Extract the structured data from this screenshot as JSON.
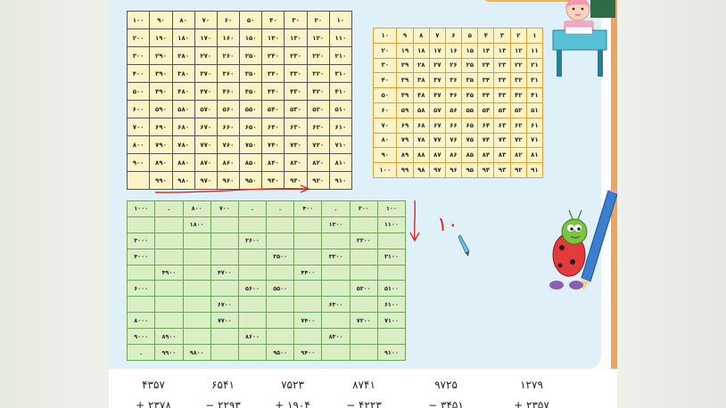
{
  "hundreds_grid": {
    "rows": [
      [
        "۱۰",
        "۲۰",
        "۳۰",
        "۴۰",
        "۵۰",
        "۶۰",
        "۷۰",
        "۸۰",
        "۹۰",
        "۱۰۰"
      ],
      [
        "۱۱۰",
        "۱۲۰",
        "۱۳۰",
        "۱۴۰",
        "۱۵۰",
        "۱۶۰",
        "۱۷۰",
        "۱۸۰",
        "۱۹۰",
        "۲۰۰"
      ],
      [
        "۲۱۰",
        "۲۲۰",
        "۲۳۰",
        "۲۴۰",
        "۲۵۰",
        "۲۶۰",
        "۲۷۰",
        "۲۸۰",
        "۲۹۰",
        "۳۰۰"
      ],
      [
        "۳۱۰",
        "۳۲۰",
        "۳۳۰",
        "۳۴۰",
        "۳۵۰",
        "۳۶۰",
        "۳۷۰",
        "۳۸۰",
        "۳۹۰",
        "۴۰۰"
      ],
      [
        "۴۱۰",
        "۴۲۰",
        "۴۳۰",
        "۴۴۰",
        "۴۵۰",
        "۴۶۰",
        "۴۷۰",
        "۴۸۰",
        "۴۹۰",
        "۵۰۰"
      ],
      [
        "۵۱۰",
        "۵۲۰",
        "۵۳۰",
        "۵۴۰",
        "۵۵۰",
        "۵۶۰",
        "۵۷۰",
        "۵۸۰",
        "۵۹۰",
        "۶۰۰"
      ],
      [
        "۶۱۰",
        "۶۲۰",
        "۶۳۰",
        "۶۴۰",
        "۶۵۰",
        "۶۶۰",
        "۶۷۰",
        "۶۸۰",
        "۶۹۰",
        "۷۰۰"
      ],
      [
        "۷۱۰",
        "۷۲۰",
        "۷۳۰",
        "۷۴۰",
        "۷۵۰",
        "۷۶۰",
        "۷۷۰",
        "۷۸۰",
        "۷۹۰",
        "۸۰۰"
      ],
      [
        "۸۱۰",
        "۸۲۰",
        "۸۳۰",
        "۸۴۰",
        "۸۵۰",
        "۸۶۰",
        "۸۷۰",
        "۸۸۰",
        "۸۹۰",
        "۹۰۰"
      ],
      [
        "۹۱۰",
        "۹۲۰",
        "۹۳۰",
        "۹۴۰",
        "۹۵۰",
        "۹۶۰",
        "۹۷۰",
        "۹۸۰",
        "۹۹۰",
        ""
      ]
    ]
  },
  "ones_grid": {
    "rows": [
      [
        "۱",
        "۲",
        "۳",
        "۴",
        "۵",
        "۶",
        "۷",
        "۸",
        "۹",
        "۱۰"
      ],
      [
        "۱۱",
        "۱۲",
        "۱۳",
        "۱۴",
        "۱۵",
        "۱۶",
        "۱۷",
        "۱۸",
        "۱۹",
        "۲۰"
      ],
      [
        "۲۱",
        "۲۲",
        "۲۳",
        "۲۴",
        "۲۵",
        "۲۶",
        "۲۷",
        "۲۸",
        "۲۹",
        "۳۰"
      ],
      [
        "۳۱",
        "۳۲",
        "۳۳",
        "۳۴",
        "۳۵",
        "۳۶",
        "۳۷",
        "۳۸",
        "۳۹",
        "۴۰"
      ],
      [
        "۴۱",
        "۴۲",
        "۴۳",
        "۴۴",
        "۴۵",
        "۴۶",
        "۴۷",
        "۴۸",
        "۴۹",
        "۵۰"
      ],
      [
        "۵۱",
        "۵۲",
        "۵۳",
        "۵۴",
        "۵۵",
        "۵۶",
        "۵۷",
        "۵۸",
        "۵۹",
        "۶۰"
      ],
      [
        "۶۱",
        "۶۲",
        "۶۳",
        "۶۴",
        "۶۵",
        "۶۶",
        "۶۷",
        "۶۸",
        "۶۹",
        "۷۰"
      ],
      [
        "۷۱",
        "۷۲",
        "۷۳",
        "۷۴",
        "۷۵",
        "۷۶",
        "۷۷",
        "۷۸",
        "۷۹",
        "۸۰"
      ],
      [
        "۸۱",
        "۸۲",
        "۸۳",
        "۸۴",
        "۸۵",
        "۸۶",
        "۸۷",
        "۸۸",
        "۸۹",
        "۹۰"
      ],
      [
        "۹۱",
        "۹۲",
        "۹۳",
        "۹۴",
        "۹۵",
        "۹۶",
        "۹۷",
        "۹۸",
        "۹۹",
        "۱۰۰"
      ]
    ]
  },
  "thousands_grid": {
    "rows": [
      [
        "۱۰۰",
        "۲۰۰",
        ".",
        "۴۰۰",
        ".",
        ".",
        "۷۰۰",
        "۸۰۰",
        ".",
        "۱۰۰۰"
      ],
      [
        "۱۱۰۰",
        "",
        "۱۳۰۰",
        "",
        "",
        "",
        "",
        "۱۸۰۰",
        "",
        ""
      ],
      [
        "",
        "۲۲۰۰",
        "",
        "",
        "",
        "۲۶۰۰",
        "",
        "",
        "",
        "۳۰۰۰"
      ],
      [
        "۳۱۰۰",
        "",
        "۳۳۰۰",
        "",
        "۳۵۰۰",
        "",
        "",
        "",
        "",
        "۴۰۰۰"
      ],
      [
        "",
        "",
        "",
        "۴۴۰۰",
        "",
        "",
        "۴۷۰۰",
        "",
        "۴۹۰۰",
        ""
      ],
      [
        "۵۱۰۰",
        "۵۲۰۰",
        "",
        "",
        "۵۵۰۰",
        "۵۶۰۰",
        "",
        "",
        "",
        "۶۰۰۰"
      ],
      [
        "۶۱۰۰",
        "",
        "۶۳۰۰",
        "",
        "",
        "",
        "۶۷۰۰",
        "",
        "",
        ""
      ],
      [
        "۷۱۰۰",
        "۷۲۰۰",
        "",
        "۷۴۰۰",
        "",
        "",
        "۷۷۰۰",
        "",
        "",
        "۸۰۰۰"
      ],
      [
        "",
        "",
        "۸۳۰۰",
        "",
        "",
        "۸۶۰۰",
        "",
        "",
        "۸۹۰۰",
        "۹۰۰۰"
      ],
      [
        "۹۱۰۰",
        "",
        "",
        "۹۴۰۰",
        "۹۵۰۰",
        "",
        "",
        "۹۸۰۰",
        "۹۹۰۰",
        "."
      ]
    ]
  },
  "handwritten": {
    "note": "۱۰"
  },
  "bottom_numbers": {
    "row1": [
      "۴۳۵۷",
      "۶۵۴۱",
      "۷۵۲۳",
      "۸۷۴۱",
      "۹۷۲۵",
      "۱۲۷۹"
    ],
    "row2": [
      "+ ۲۳۷۸",
      "− ۲۲۹۳",
      "+ ۱۹۰۴",
      "− ۴۲۲۳",
      "− ۳۴۵۱",
      "+ ۲۳۵۷"
    ]
  },
  "colors": {
    "accent_red": "#d42a2a",
    "yellow_grid": "#fcf3c6",
    "green_grid": "#d9efc3",
    "panel_blue": "#dff0f8",
    "orange": "#f0a45a"
  }
}
